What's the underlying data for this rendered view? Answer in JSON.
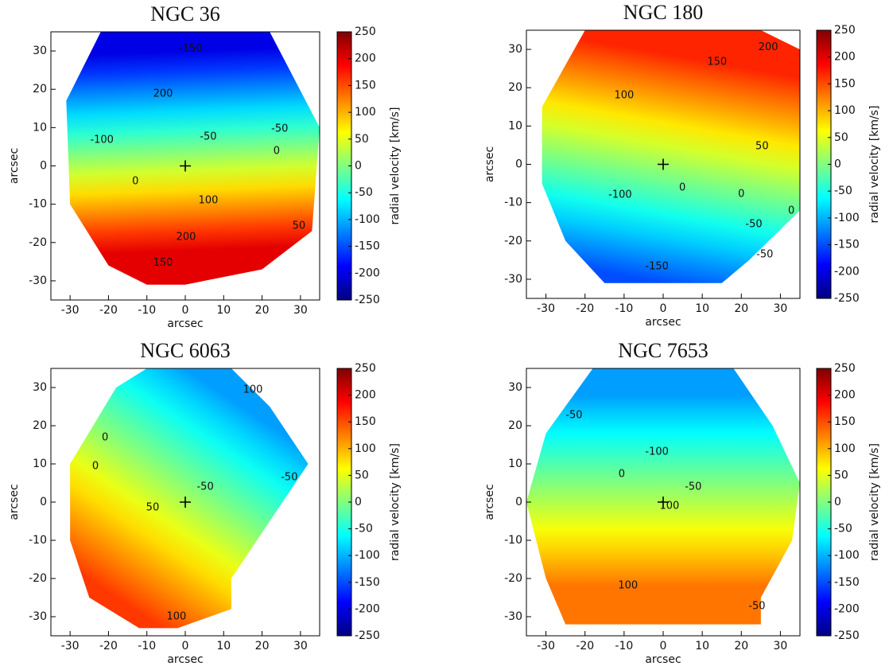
{
  "chart_data": [
    {
      "type": "velocity-map",
      "title": "NGC 36",
      "xlabel": "arcsec",
      "ylabel": "arcsec",
      "colorbar_label": "radial velocity [km/s]",
      "colormap": "jet",
      "xlim": [
        -35,
        35
      ],
      "ylim": [
        -35,
        35
      ],
      "xticks": [
        -30,
        -20,
        -10,
        0,
        10,
        20,
        30
      ],
      "yticks": [
        -30,
        -20,
        -10,
        0,
        10,
        20,
        30
      ],
      "clim": [
        -250,
        250
      ],
      "cticks": [
        -250,
        -200,
        -150,
        -100,
        -50,
        0,
        50,
        100,
        150,
        200,
        250
      ],
      "contour_labels": [
        {
          "value": -150,
          "x": 1.4,
          "y": 30.5
        },
        {
          "value": 200,
          "x": -5.8,
          "y": 18.8
        },
        {
          "value": -100,
          "x": -21.7,
          "y": 6.8
        },
        {
          "value": -50,
          "x": 6,
          "y": 7.6
        },
        {
          "value": -50,
          "x": 24.6,
          "y": 9.7
        },
        {
          "value": 0,
          "x": 23.8,
          "y": 3.8
        },
        {
          "value": 0,
          "x": -13,
          "y": -4
        },
        {
          "value": 100,
          "x": 6,
          "y": -9
        },
        {
          "value": 50,
          "x": 29.6,
          "y": -15.7
        },
        {
          "value": 200,
          "x": 0.2,
          "y": -18.6
        },
        {
          "value": 150,
          "x": -5.8,
          "y": -25.3
        }
      ]
    },
    {
      "type": "velocity-map",
      "title": "NGC 180",
      "xlabel": "arcsec",
      "ylabel": "arcsec",
      "colorbar_label": "radial velocity [km/s]",
      "colormap": "jet",
      "xlim": [
        -35,
        35
      ],
      "ylim": [
        -35,
        35
      ],
      "xticks": [
        -30,
        -20,
        -10,
        0,
        10,
        20,
        30
      ],
      "yticks": [
        -30,
        -20,
        -10,
        0,
        10,
        20,
        30
      ],
      "clim": [
        -250,
        250
      ],
      "cticks": [
        -250,
        -200,
        -150,
        -100,
        -50,
        0,
        50,
        100,
        150,
        200,
        250
      ],
      "contour_labels": [
        {
          "value": 150,
          "x": 13.8,
          "y": 26.7
        },
        {
          "value": 200,
          "x": 26.9,
          "y": 30.5
        },
        {
          "value": 100,
          "x": -10,
          "y": 18
        },
        {
          "value": 50,
          "x": 25.3,
          "y": 4.7
        },
        {
          "value": 0,
          "x": 4.9,
          "y": -6.1
        },
        {
          "value": -100,
          "x": -11,
          "y": -8
        },
        {
          "value": 0,
          "x": 20,
          "y": -7.8
        },
        {
          "value": -50,
          "x": 23.2,
          "y": -15.7
        },
        {
          "value": 0,
          "x": 32.8,
          "y": -12.2
        },
        {
          "value": -50,
          "x": 26,
          "y": -23.6
        },
        {
          "value": -150,
          "x": -1.6,
          "y": -26.7
        }
      ]
    },
    {
      "type": "velocity-map",
      "title": "NGC 6063",
      "xlabel": "arcsec",
      "ylabel": "arcsec",
      "colorbar_label": "radial velocity [km/s]",
      "colormap": "jet",
      "xlim": [
        -35,
        35
      ],
      "ylim": [
        -35,
        35
      ],
      "xticks": [
        -30,
        -20,
        -10,
        0,
        10,
        20,
        30
      ],
      "yticks": [
        -30,
        -20,
        -10,
        0,
        10,
        20,
        30
      ],
      "clim": [
        -250,
        250
      ],
      "cticks": [
        -250,
        -200,
        -150,
        -100,
        -50,
        0,
        50,
        100,
        150,
        200,
        250
      ],
      "contour_labels": [
        {
          "value": 100,
          "x": 17.6,
          "y": 29.4
        },
        {
          "value": 0,
          "x": -20.9,
          "y": 16.9
        },
        {
          "value": 0,
          "x": -23.4,
          "y": 9.4
        },
        {
          "value": -50,
          "x": 5.2,
          "y": 4
        },
        {
          "value": -50,
          "x": 27.1,
          "y": 6.5
        },
        {
          "value": 50,
          "x": -8.5,
          "y": -1.5
        },
        {
          "value": 100,
          "x": -2.3,
          "y": -30
        }
      ]
    },
    {
      "type": "velocity-map",
      "title": "NGC 7653",
      "xlabel": "arcsec",
      "ylabel": "arcsec",
      "colorbar_label": "radial velocity [km/s]",
      "colormap": "jet",
      "xlim": [
        -35,
        35
      ],
      "ylim": [
        -35,
        35
      ],
      "xticks": [
        -30,
        -20,
        -10,
        0,
        10,
        20,
        30
      ],
      "yticks": [
        -30,
        -20,
        -10,
        0,
        10,
        20,
        30
      ],
      "clim": [
        -250,
        250
      ],
      "cticks": [
        -250,
        -200,
        -150,
        -100,
        -50,
        0,
        50,
        100,
        150,
        200,
        250
      ],
      "contour_labels": [
        {
          "value": -50,
          "x": -22.8,
          "y": 22.7
        },
        {
          "value": -100,
          "x": -1.6,
          "y": 13.1
        },
        {
          "value": -50,
          "x": 7.7,
          "y": 4
        },
        {
          "value": 0,
          "x": -10.6,
          "y": 7.3
        },
        {
          "value": 100,
          "x": 1.6,
          "y": -1
        },
        {
          "value": 100,
          "x": -9,
          "y": -21.9
        },
        {
          "value": -50,
          "x": 24,
          "y": -27.3
        }
      ]
    }
  ]
}
